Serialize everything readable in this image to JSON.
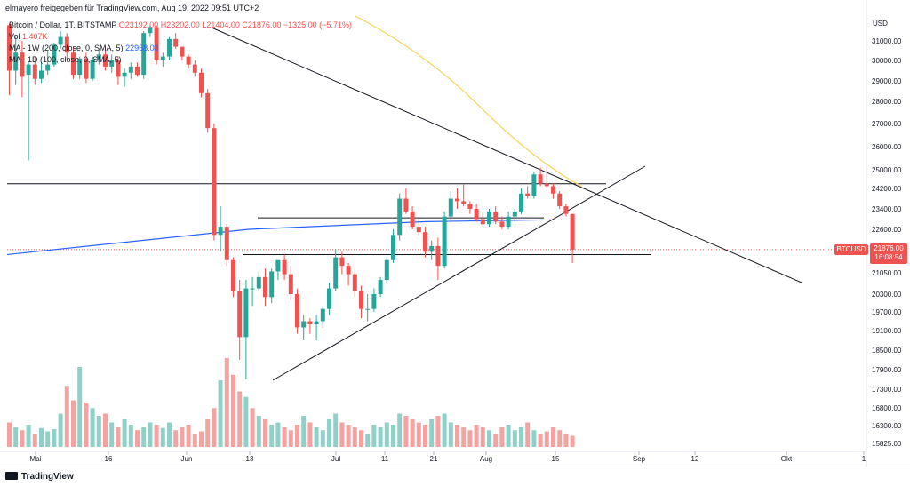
{
  "header": {
    "publisher": "elmayero freigegeben für TradingView.com, Aug 19, 2022 09:51 UTC+2"
  },
  "legend": {
    "symbol": "Bitcoin / Dollar, 1T, BITSTAMP",
    "ohlc": "O23192.00 H23202.00 L21404.00 C21876.00 −1325.00 (−5.71%)",
    "volume_label": "Vol",
    "volume_value": "1.407K",
    "ma1_label": "MA - 1W (200, close, 0, SMA, 5)",
    "ma1_value": "22968.03",
    "ma2_label": "MA - 1D (100, close, 0, SMA, 5)"
  },
  "footer": {
    "brand": "TradingView"
  },
  "price_axis": {
    "currency": "USD"
  },
  "badges": {
    "symbol": "BTCUSD",
    "last_price": "21876.00",
    "countdown": "16:08:54"
  },
  "colors": {
    "up": "#26a69a",
    "down": "#ef5350",
    "vol_up": "#8fd0c9",
    "vol_down": "#f5a3a1",
    "ma_1w": "#2962ff",
    "ma_1d": "#f7d454",
    "trendline": "#131722"
  },
  "chart_data": {
    "type": "candlestick",
    "y_ticks": [
      31000,
      30000,
      29000,
      28000,
      27000,
      26000,
      25000,
      24200,
      23400,
      22600,
      21050,
      20300,
      19700,
      19100,
      18500,
      17900,
      17300,
      16800,
      16300,
      15825
    ],
    "x_ticks": [
      "Mai",
      "16",
      "Jun",
      "13",
      "Jul",
      "11",
      "21",
      "Aug",
      "15",
      "Sep",
      "12",
      "Okt",
      "1"
    ],
    "last_price": 21876,
    "candles": [
      [
        31800,
        31900,
        28300,
        29500
      ],
      [
        29500,
        31200,
        28800,
        30400
      ],
      [
        30400,
        31000,
        28200,
        29200
      ],
      [
        29300,
        29900,
        25400,
        29800
      ],
      [
        29800,
        30200,
        28800,
        29100
      ],
      [
        29100,
        29900,
        28900,
        29500
      ],
      [
        29500,
        30500,
        29300,
        29800
      ],
      [
        29800,
        30900,
        29700,
        30800
      ],
      [
        30800,
        31500,
        30600,
        31200
      ],
      [
        31200,
        31400,
        30000,
        30400
      ],
      [
        30400,
        30700,
        29100,
        29300
      ],
      [
        29300,
        30200,
        29100,
        30100
      ],
      [
        30100,
        30400,
        28900,
        29100
      ],
      [
        29100,
        30200,
        29000,
        30000
      ],
      [
        30000,
        30600,
        29800,
        30300
      ],
      [
        30300,
        30700,
        29500,
        29700
      ],
      [
        29700,
        30300,
        29400,
        30000
      ],
      [
        30000,
        30200,
        28800,
        29200
      ],
      [
        29200,
        29600,
        28700,
        29400
      ],
      [
        29400,
        29900,
        29100,
        29700
      ],
      [
        29700,
        29900,
        29200,
        29300
      ],
      [
        29300,
        31500,
        29100,
        31400
      ],
      [
        31400,
        31800,
        31200,
        31700
      ],
      [
        31700,
        31800,
        29800,
        30000
      ],
      [
        30000,
        30400,
        29700,
        30200
      ],
      [
        30200,
        31200,
        30000,
        31100
      ],
      [
        31100,
        31400,
        30600,
        30700
      ],
      [
        30700,
        30700,
        30000,
        30200
      ],
      [
        30200,
        30300,
        29600,
        29800
      ],
      [
        29800,
        30000,
        29200,
        29400
      ],
      [
        29400,
        29600,
        28200,
        28400
      ],
      [
        28400,
        28600,
        26600,
        26800
      ],
      [
        26800,
        27000,
        22200,
        22400
      ],
      [
        22400,
        23500,
        21800,
        22700
      ],
      [
        22700,
        22800,
        21300,
        21500
      ],
      [
        21500,
        21600,
        20200,
        20400
      ],
      [
        20400,
        20800,
        18200,
        18900
      ],
      [
        18900,
        20800,
        17600,
        20500
      ],
      [
        20500,
        20900,
        19900,
        20500
      ],
      [
        20500,
        21100,
        20400,
        20900
      ],
      [
        20900,
        21200,
        19900,
        20200
      ],
      [
        20200,
        21200,
        20000,
        21100
      ],
      [
        21100,
        21500,
        20800,
        21500
      ],
      [
        21500,
        21700,
        20800,
        21000
      ],
      [
        21000,
        21300,
        20100,
        20300
      ],
      [
        20300,
        20500,
        19000,
        19200
      ],
      [
        19200,
        19600,
        18800,
        19400
      ],
      [
        19400,
        19500,
        19000,
        19300
      ],
      [
        19300,
        19600,
        18800,
        19400
      ],
      [
        19400,
        19900,
        19200,
        19800
      ],
      [
        19800,
        20700,
        19600,
        20500
      ],
      [
        20500,
        21900,
        20400,
        21600
      ],
      [
        21600,
        21800,
        21000,
        21300
      ],
      [
        21300,
        21400,
        20600,
        21000
      ],
      [
        21000,
        21100,
        20200,
        20400
      ],
      [
        20400,
        20600,
        19500,
        19800
      ],
      [
        19800,
        20300,
        19400,
        19800
      ],
      [
        19800,
        20500,
        19700,
        20300
      ],
      [
        20300,
        20900,
        20200,
        20800
      ],
      [
        20800,
        21600,
        20700,
        21500
      ],
      [
        21500,
        22600,
        21400,
        22400
      ],
      [
        22400,
        24000,
        22200,
        23800
      ],
      [
        23800,
        24200,
        23200,
        23300
      ],
      [
        23300,
        23500,
        22600,
        22700
      ],
      [
        22700,
        23000,
        22400,
        22500
      ],
      [
        22500,
        22700,
        21600,
        21800
      ],
      [
        21800,
        22200,
        21500,
        22000
      ],
      [
        22000,
        22300,
        20800,
        21300
      ],
      [
        21300,
        23300,
        21200,
        23100
      ],
      [
        23100,
        24100,
        22900,
        23800
      ],
      [
        23800,
        24200,
        23400,
        23700
      ],
      [
        23700,
        24400,
        23500,
        23600
      ],
      [
        23600,
        23700,
        23200,
        23400
      ],
      [
        23400,
        23600,
        22900,
        23000
      ],
      [
        23000,
        23300,
        22700,
        22800
      ],
      [
        22800,
        23400,
        22700,
        23300
      ],
      [
        23300,
        23500,
        22800,
        22900
      ],
      [
        22900,
        23100,
        22600,
        22700
      ],
      [
        22700,
        23300,
        22600,
        23100
      ],
      [
        23100,
        23400,
        22900,
        23300
      ],
      [
        23300,
        24200,
        23200,
        24000
      ],
      [
        24000,
        24300,
        23800,
        23900
      ],
      [
        23900,
        24900,
        23800,
        24800
      ],
      [
        24800,
        25100,
        24300,
        24400
      ],
      [
        24400,
        25200,
        24200,
        24300
      ],
      [
        24300,
        24400,
        23800,
        24000
      ],
      [
        24000,
        24100,
        23400,
        23500
      ],
      [
        23500,
        23600,
        23100,
        23200
      ],
      [
        23200,
        23200,
        21400,
        21876
      ]
    ],
    "volumes": [
      0.22,
      0.18,
      0.15,
      0.2,
      0.12,
      0.17,
      0.14,
      0.16,
      0.3,
      0.55,
      0.42,
      0.72,
      0.4,
      0.35,
      0.28,
      0.3,
      0.22,
      0.18,
      0.25,
      0.2,
      0.15,
      0.18,
      0.22,
      0.2,
      0.17,
      0.22,
      0.15,
      0.18,
      0.2,
      0.12,
      0.14,
      0.25,
      0.35,
      0.6,
      0.8,
      0.65,
      0.5,
      0.45,
      0.35,
      0.28,
      0.25,
      0.2,
      0.22,
      0.18,
      0.15,
      0.2,
      0.28,
      0.22,
      0.18,
      0.15,
      0.25,
      0.3,
      0.22,
      0.2,
      0.18,
      0.15,
      0.12,
      0.2,
      0.18,
      0.22,
      0.2,
      0.3,
      0.28,
      0.25,
      0.22,
      0.2,
      0.25,
      0.28,
      0.3,
      0.22,
      0.2,
      0.18,
      0.15,
      0.2,
      0.18,
      0.15,
      0.12,
      0.18,
      0.2,
      0.15,
      0.18,
      0.22,
      0.15,
      0.12,
      0.14,
      0.18,
      0.15,
      0.12,
      0.1
    ],
    "volume_up_flags": [
      0,
      1,
      0,
      1,
      0,
      1,
      1,
      1,
      1,
      0,
      0,
      1,
      0,
      1,
      1,
      0,
      1,
      0,
      1,
      1,
      0,
      1,
      1,
      0,
      1,
      1,
      0,
      0,
      0,
      0,
      0,
      0,
      0,
      1,
      0,
      0,
      0,
      1,
      0,
      1,
      0,
      1,
      1,
      0,
      0,
      0,
      1,
      0,
      1,
      1,
      1,
      1,
      0,
      0,
      0,
      0,
      1,
      1,
      1,
      1,
      1,
      1,
      0,
      0,
      0,
      0,
      1,
      0,
      1,
      1,
      0,
      0,
      0,
      0,
      0,
      1,
      0,
      0,
      1,
      1,
      1,
      0,
      1,
      0,
      0,
      0,
      0,
      0,
      0
    ]
  }
}
